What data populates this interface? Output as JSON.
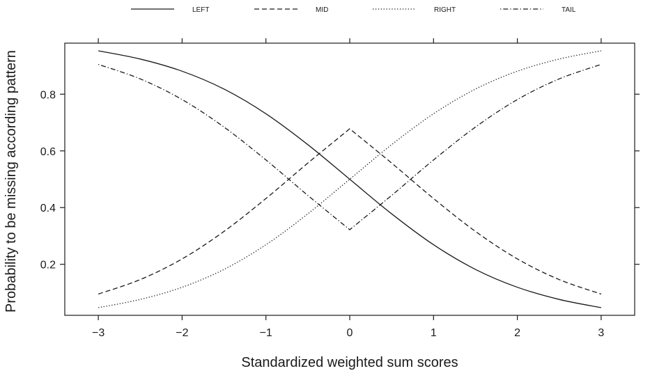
{
  "chart_data": {
    "type": "line",
    "xlabel": "Standardized weighted sum scores",
    "ylabel": "Probability to be missing according pattern",
    "xlim": [
      -3.4,
      3.4
    ],
    "ylim": [
      0.02,
      0.98
    ],
    "x_ticks": [
      -3,
      -2,
      -1,
      0,
      1,
      2,
      3
    ],
    "x_tick_labels": [
      "−3",
      "−2",
      "−1",
      "0",
      "1",
      "2",
      "3"
    ],
    "y_ticks": [
      0.2,
      0.4,
      0.6,
      0.8
    ],
    "y_tick_labels": [
      "0.2",
      "0.4",
      "0.6",
      "0.8"
    ],
    "grid": false,
    "legend_position": "top",
    "x": [
      -3,
      -2.5,
      -2,
      -1.5,
      -1,
      -0.5,
      0,
      0.5,
      1,
      1.5,
      2,
      2.5,
      3
    ],
    "series": [
      {
        "name": "LEFT",
        "line_style": "solid",
        "values": [
          0.953,
          0.924,
          0.881,
          0.818,
          0.731,
          0.622,
          0.5,
          0.378,
          0.269,
          0.182,
          0.119,
          0.076,
          0.047
        ]
      },
      {
        "name": "MID",
        "line_style": "dashed",
        "values": [
          0.095,
          0.146,
          0.219,
          0.316,
          0.432,
          0.557,
          0.678,
          0.557,
          0.432,
          0.316,
          0.219,
          0.146,
          0.095
        ]
      },
      {
        "name": "RIGHT",
        "line_style": "dotted",
        "values": [
          0.047,
          0.076,
          0.119,
          0.182,
          0.269,
          0.378,
          0.5,
          0.622,
          0.731,
          0.818,
          0.881,
          0.924,
          0.953
        ]
      },
      {
        "name": "TAIL",
        "line_style": "dotdash",
        "values": [
          0.905,
          0.854,
          0.781,
          0.684,
          0.568,
          0.443,
          0.322,
          0.443,
          0.568,
          0.684,
          0.781,
          0.854,
          0.905
        ]
      }
    ]
  }
}
